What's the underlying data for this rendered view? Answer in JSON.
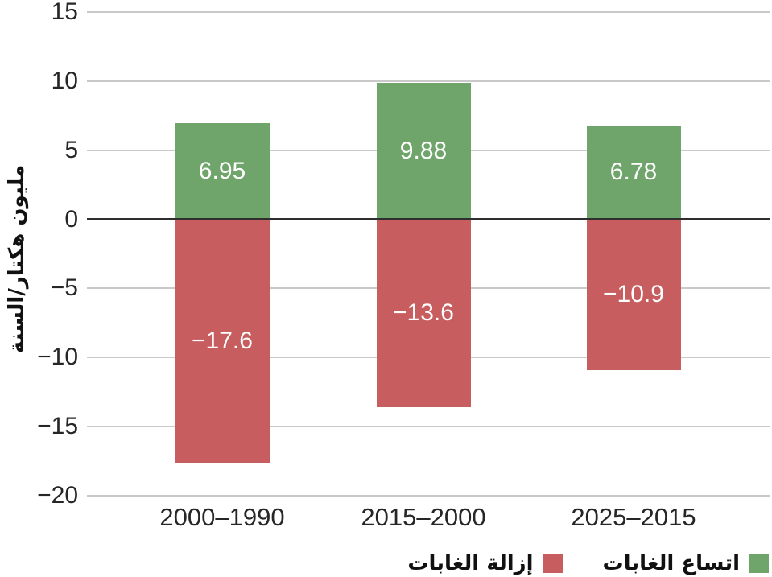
{
  "chart_data": {
    "type": "bar",
    "categories": [
      "2000–1990",
      "2015–2000",
      "2025–2015"
    ],
    "series": [
      {
        "name": "اتساع الغابات",
        "color": "#6fa46b",
        "values": [
          6.95,
          9.88,
          6.78
        ],
        "labels": [
          "6.95",
          "9.88",
          "6.78"
        ]
      },
      {
        "name": "إزالة الغابات",
        "color": "#c75d5e",
        "values": [
          -17.6,
          -13.6,
          -10.9
        ],
        "labels": [
          "−17.6",
          "−13.6",
          "−10.9"
        ]
      }
    ],
    "ylabel": "مليون هكتار/السنة",
    "ylim": [
      -20,
      15
    ],
    "yticks": [
      15,
      10,
      5,
      0,
      -5,
      -10,
      -15,
      -20
    ],
    "ytick_labels": [
      "15",
      "10",
      "5",
      "0",
      "−5",
      "−10",
      "−15",
      "−20"
    ],
    "grid": true,
    "legend_position": "bottom-right",
    "value_label_color": "#ffffff",
    "zero_line_color": "#2e2e2e",
    "gridline_color": "#c9c9c9"
  }
}
